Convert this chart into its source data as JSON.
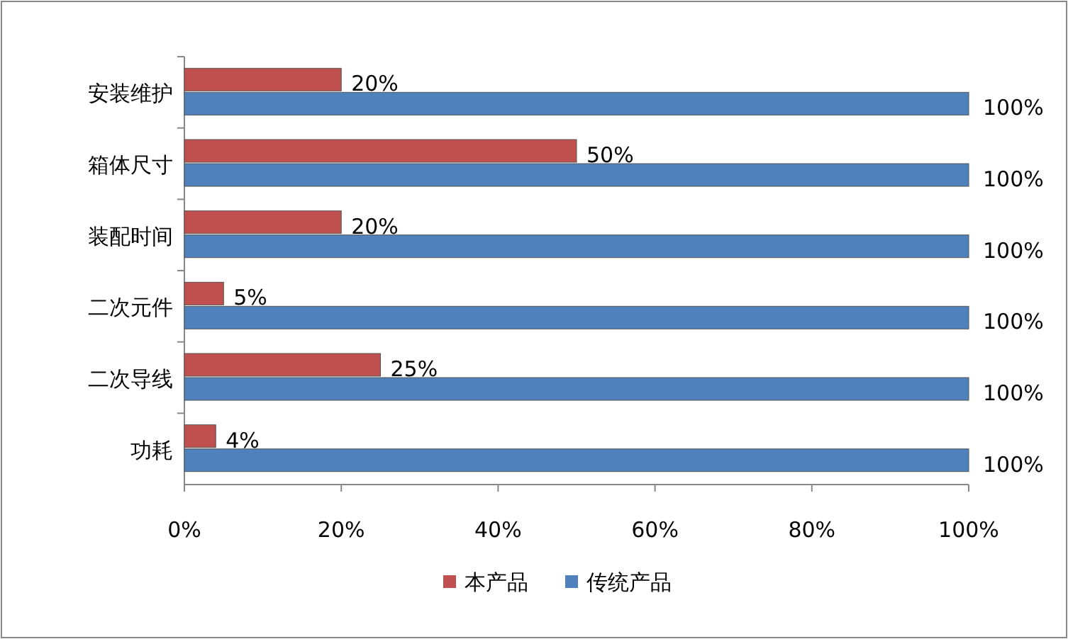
{
  "chart_data": {
    "type": "bar",
    "orientation": "horizontal",
    "categories": [
      "安装维护",
      "箱体尺寸",
      "装配时间",
      "二次元件",
      "二次导线",
      "功耗"
    ],
    "series": [
      {
        "name": "本产品",
        "color": "#c0504d",
        "values": [
          20,
          50,
          20,
          5,
          25,
          4
        ],
        "value_labels": [
          "20%",
          "50%",
          "20%",
          "5%",
          "25%",
          "4%"
        ]
      },
      {
        "name": "传统产品",
        "color": "#4f81bd",
        "values": [
          100,
          100,
          100,
          100,
          100,
          100
        ],
        "value_labels": [
          "100%",
          "100%",
          "100%",
          "100%",
          "100%",
          "100%"
        ]
      }
    ],
    "xlim": [
      0,
      100
    ],
    "xticks": [
      {
        "value": 0,
        "label": "0%"
      },
      {
        "value": 20,
        "label": "20%"
      },
      {
        "value": 40,
        "label": "40%"
      },
      {
        "value": 60,
        "label": "60%"
      },
      {
        "value": 80,
        "label": "80%"
      },
      {
        "value": 100,
        "label": "100%"
      }
    ],
    "legend": "bottom"
  }
}
